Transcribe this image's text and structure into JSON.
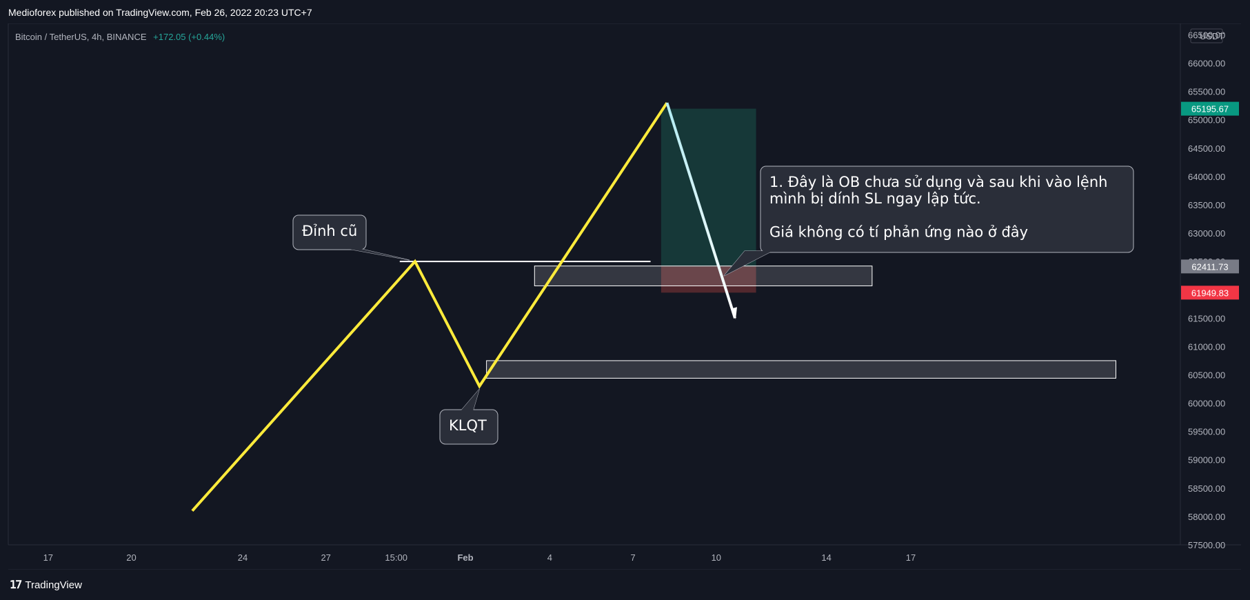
{
  "header": {
    "publisher": "Medioforex published on TradingView.com, Feb 26, 2022 20:23 UTC+7"
  },
  "legend": {
    "symbol": "Bitcoin / TetherUS, 4h, BINANCE",
    "change": "+172.05 (+0.44%)",
    "change_color": "#26a69a"
  },
  "footer": {
    "logo_text": "TradingView"
  },
  "colors": {
    "background": "#131722",
    "grid": "#2a2e39",
    "axis_text": "#b2b5be",
    "zigzag": "#ffeb3b",
    "drop_line": "#ffffff",
    "tp_zone": "#163a3a",
    "sl_zone": "#5a2a30",
    "tag_last": "#089981",
    "tag_box": "#787b86",
    "tag_red": "#f23645"
  },
  "chart_data": {
    "type": "line",
    "currency_label": "USDT",
    "y_ticks": [
      "66500.00",
      "66000.00",
      "65500.00",
      "65000.00",
      "64500.00",
      "64000.00",
      "63500.00",
      "63000.00",
      "62500.00",
      "62000.00",
      "61500.00",
      "61000.00",
      "60500.00",
      "60000.00",
      "59500.00",
      "59000.00",
      "58500.00",
      "58000.00",
      "57500.00"
    ],
    "x_ticks": [
      "17",
      "20",
      "24",
      "27",
      "15:00",
      "Feb",
      "4",
      "7",
      "10",
      "14",
      "17"
    ],
    "ylim": [
      57500,
      66700
    ],
    "series": [
      {
        "values_x": [
          0.157,
          0.347,
          0.402,
          0.562
        ],
        "values_y": [
          58100,
          62500,
          60300,
          65300
        ]
      }
    ],
    "drop": {
      "values_x": [
        0.562,
        0.62
      ],
      "values_y": [
        65300,
        61500
      ]
    },
    "horizontal_level": {
      "y": 62500,
      "x_from": 0.334,
      "x_to": 0.548
    },
    "zones": [
      {
        "y_top": 62420,
        "y_bottom": 62070,
        "x_from": 0.449,
        "x_to": 0.737
      },
      {
        "y_top": 60750,
        "y_bottom": 60440,
        "x_from": 0.408,
        "x_to": 0.945
      }
    ],
    "position": {
      "entry": 62411.73,
      "tp": 65195.67,
      "sl": 61949.83,
      "x_from": 0.557,
      "x_to": 0.638
    },
    "price_tags": [
      {
        "label": "65195.67",
        "value": 65195.67,
        "kind": "last"
      },
      {
        "label": "62411.73",
        "value": 62411.73,
        "kind": "box"
      },
      {
        "label": "61949.83",
        "value": 61949.83,
        "kind": "red"
      }
    ],
    "annotations": [
      {
        "id": "dinh-cu",
        "text": [
          "Đỉnh cũ"
        ]
      },
      {
        "id": "klqt",
        "text": [
          "KLQT"
        ]
      },
      {
        "id": "note",
        "text": [
          "1. Đây là OB chưa sử dụng và sau khi vào lệnh",
          "mình bị dính SL ngay lập tức.",
          "",
          "Giá không có tí phản ứng nào ở đây"
        ]
      }
    ]
  }
}
